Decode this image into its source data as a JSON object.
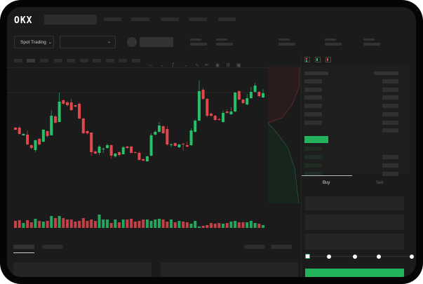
{
  "header": {
    "logo": "OKX",
    "nav_items": 5
  },
  "toolbar": {
    "market_selector": "Spot Trading",
    "market_selector_icon": "chevron-down-icon",
    "pair_selector_icon": "chevron-down-icon",
    "tools": [
      "line-type-icon",
      "chevron-down-icon",
      "indicator-icon",
      "chevron-down-icon",
      "wave-icon",
      "ruler-icon",
      "camera-icon",
      "settings-icon",
      "fullscreen-icon"
    ]
  },
  "orderbook": {
    "view_icons": [
      "orderbook-both-icon",
      "orderbook-bids-icon",
      "orderbook-asks-icon"
    ]
  },
  "trade": {
    "tabs": [
      {
        "label": "Buy",
        "active": true
      },
      {
        "label": "Sell",
        "active": false
      }
    ],
    "slider_steps": 5,
    "slider_value_percent": 0
  },
  "colors": {
    "up": "#26c068",
    "down": "#e0484d",
    "background": "#1b1b1b",
    "accent": "#22b35c"
  },
  "chart_data": {
    "type": "candlestick",
    "candles": [
      [
        118,
        119,
        114,
        115
      ],
      [
        118,
        120,
        108,
        109
      ],
      [
        107,
        110,
        106,
        109
      ],
      [
        108,
        114,
        93,
        94
      ],
      [
        93,
        94,
        87,
        89
      ],
      [
        86,
        101,
        83,
        100
      ],
      [
        102,
        103,
        93,
        94
      ],
      [
        98,
        116,
        97,
        115
      ],
      [
        113,
        114,
        104,
        106
      ],
      [
        107,
        143,
        107,
        135
      ],
      [
        134,
        136,
        124,
        125
      ],
      [
        126,
        168,
        126,
        155
      ],
      [
        157,
        158,
        151,
        152
      ],
      [
        154,
        156,
        148,
        150
      ],
      [
        154,
        159,
        142,
        143
      ],
      [
        150,
        151,
        147,
        148
      ],
      [
        152,
        154,
        130,
        131
      ],
      [
        131,
        132,
        109,
        110
      ],
      [
        113,
        114,
        108,
        110
      ],
      [
        111,
        111,
        78,
        83
      ],
      [
        84,
        85,
        80,
        81
      ],
      [
        82,
        93,
        79,
        91
      ],
      [
        87,
        90,
        82,
        88
      ],
      [
        89,
        95,
        88,
        93
      ],
      [
        93,
        94,
        74,
        78
      ],
      [
        77,
        82,
        75,
        81
      ],
      [
        83,
        84,
        77,
        79
      ],
      [
        80,
        92,
        80,
        90
      ],
      [
        91,
        92,
        88,
        89
      ],
      [
        91,
        92,
        81,
        82
      ],
      [
        83,
        84,
        81,
        82
      ],
      [
        82,
        84,
        71,
        72
      ],
      [
        73,
        74,
        70,
        71
      ],
      [
        70,
        78,
        69,
        77
      ],
      [
        78,
        110,
        77,
        107
      ],
      [
        108,
        114,
        107,
        112
      ],
      [
        112,
        126,
        111,
        121
      ],
      [
        120,
        121,
        109,
        110
      ],
      [
        116,
        120,
        92,
        94
      ],
      [
        93,
        96,
        90,
        94
      ],
      [
        96,
        97,
        91,
        92
      ],
      [
        90,
        95,
        89,
        94
      ],
      [
        95,
        96,
        85,
        94
      ],
      [
        93,
        98,
        90,
        91
      ],
      [
        93,
        117,
        92,
        114
      ],
      [
        112,
        130,
        111,
        128
      ],
      [
        128,
        185,
        127,
        170
      ],
      [
        172,
        175,
        157,
        159
      ],
      [
        159,
        160,
        133,
        135
      ],
      [
        138,
        140,
        133,
        135
      ],
      [
        135,
        136,
        128,
        129
      ],
      [
        130,
        132,
        128,
        129
      ],
      [
        126,
        142,
        125,
        139
      ],
      [
        141,
        144,
        138,
        139
      ],
      [
        137,
        147,
        136,
        141
      ],
      [
        141,
        169,
        140,
        168
      ],
      [
        170,
        171,
        157,
        158
      ],
      [
        158,
        159,
        152,
        153
      ],
      [
        151,
        166,
        150,
        160
      ],
      [
        160,
        176,
        159,
        169
      ],
      [
        169,
        182,
        168,
        178
      ],
      [
        169,
        170,
        161,
        163
      ],
      [
        161,
        173,
        160,
        167
      ]
    ],
    "volume": [
      10,
      11,
      7,
      11,
      8,
      13,
      10,
      9,
      10,
      17,
      14,
      17,
      14,
      12,
      12,
      9,
      10,
      14,
      10,
      12,
      10,
      19,
      12,
      12,
      7,
      12,
      8,
      12,
      12,
      13,
      9,
      10,
      12,
      12,
      10,
      12,
      13,
      12,
      9,
      12,
      8,
      10,
      9,
      8,
      6,
      10,
      2,
      3,
      4,
      7,
      6,
      7,
      6,
      7,
      9,
      10,
      8,
      8,
      8,
      10,
      7,
      6,
      4
    ],
    "grid": true
  }
}
